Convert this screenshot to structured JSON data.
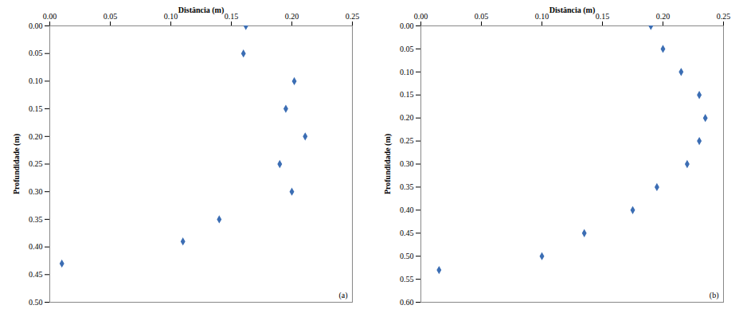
{
  "chart_data": [
    {
      "type": "scatter",
      "x_label": "Distância (m)",
      "y_label": "Profundidade (m)",
      "annotation": "(a)",
      "x": [
        0.162,
        0.16,
        0.202,
        0.195,
        0.211,
        0.19,
        0.2,
        0.14,
        0.11,
        0.01
      ],
      "values": [
        0.0,
        0.05,
        0.1,
        0.15,
        0.2,
        0.25,
        0.3,
        0.35,
        0.39,
        0.43
      ],
      "color": "#3c6eb4",
      "marker": "diamond",
      "grid": false,
      "xlim": [
        0,
        0.25
      ],
      "xticks": [
        {
          "value": 0,
          "label": "0.00"
        },
        {
          "value": 0.05,
          "label": "0.05"
        },
        {
          "value": 0.1,
          "label": "0.10"
        },
        {
          "value": 0.15,
          "label": "0.15"
        },
        {
          "value": 0.2,
          "label": "0.20"
        },
        {
          "value": 0.25,
          "label": "0.25"
        }
      ],
      "ylim": [
        0,
        0.5
      ],
      "yticks": [
        {
          "value": 0,
          "label": "0.00"
        },
        {
          "value": 0.05,
          "label": "0.05"
        },
        {
          "value": 0.1,
          "label": "0.10"
        },
        {
          "value": 0.15,
          "label": "0.15"
        },
        {
          "value": 0.2,
          "label": "0.20"
        },
        {
          "value": 0.25,
          "label": "0.25"
        },
        {
          "value": 0.3,
          "label": "0.30"
        },
        {
          "value": 0.35,
          "label": "0.35"
        },
        {
          "value": 0.4,
          "label": "0.40"
        },
        {
          "value": 0.45,
          "label": "0.45"
        },
        {
          "value": 0.5,
          "label": "0.50"
        }
      ]
    },
    {
      "type": "scatter",
      "x_label": "Distância (m)",
      "y_label": "Profundidade (m)",
      "annotation": "(b)",
      "x": [
        0.19,
        0.2,
        0.215,
        0.23,
        0.235,
        0.23,
        0.22,
        0.195,
        0.175,
        0.135,
        0.1,
        0.015
      ],
      "values": [
        0.0,
        0.05,
        0.1,
        0.15,
        0.2,
        0.25,
        0.3,
        0.35,
        0.4,
        0.45,
        0.5,
        0.53
      ],
      "color": "#3c6eb4",
      "marker": "diamond",
      "grid": false,
      "xlim": [
        0,
        0.25
      ],
      "xticks": [
        {
          "value": 0,
          "label": "0.00"
        },
        {
          "value": 0.05,
          "label": "0.05"
        },
        {
          "value": 0.1,
          "label": "0.10"
        },
        {
          "value": 0.15,
          "label": "0.15"
        },
        {
          "value": 0.2,
          "label": "0.20"
        },
        {
          "value": 0.25,
          "label": "0.25"
        }
      ],
      "ylim": [
        0,
        0.6
      ],
      "yticks": [
        {
          "value": 0,
          "label": "0.00"
        },
        {
          "value": 0.05,
          "label": "0.05"
        },
        {
          "value": 0.1,
          "label": "0.10"
        },
        {
          "value": 0.15,
          "label": "0.15"
        },
        {
          "value": 0.2,
          "label": "0.20"
        },
        {
          "value": 0.25,
          "label": "0.25"
        },
        {
          "value": 0.3,
          "label": "0.30"
        },
        {
          "value": 0.35,
          "label": "0.35"
        },
        {
          "value": 0.4,
          "label": "0.40"
        },
        {
          "value": 0.45,
          "label": "0.45"
        },
        {
          "value": 0.5,
          "label": "0.50"
        },
        {
          "value": 0.55,
          "label": "0.55"
        },
        {
          "value": 0.6,
          "label": "0.60"
        }
      ]
    }
  ]
}
